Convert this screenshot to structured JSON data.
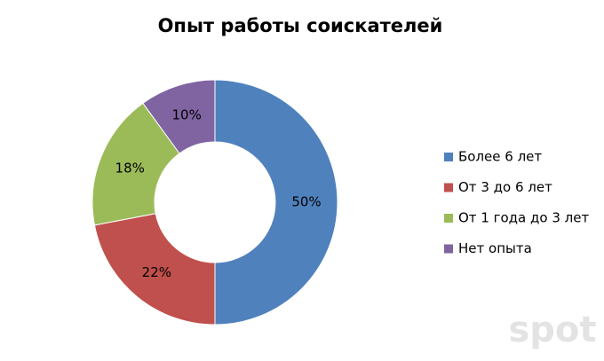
{
  "chart_data": {
    "type": "donut",
    "title": "Опыт работы соискателей",
    "categories": [
      "Более 6 лет",
      "От 3 до 6 лет",
      "От 1 года до 3 лет",
      "Нет опыта"
    ],
    "values": [
      50,
      22,
      18,
      10
    ],
    "value_labels": [
      "50%",
      "22%",
      "18%",
      "10%"
    ],
    "colors": [
      "#4f81bd",
      "#c0504d",
      "#9bbb59",
      "#8064a2"
    ],
    "legend": "right",
    "watermark": "spot"
  }
}
